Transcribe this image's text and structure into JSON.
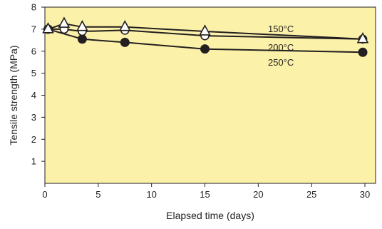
{
  "chart_data": {
    "type": "line",
    "xlabel": "Elapsed time (days)",
    "ylabel": "Tensile strength (MPa)",
    "xlim": [
      0,
      31
    ],
    "ylim": [
      0,
      8
    ],
    "x_ticks": [
      0,
      5,
      10,
      15,
      20,
      25,
      30
    ],
    "y_ticks": [
      1,
      2,
      3,
      4,
      5,
      6,
      7,
      8
    ],
    "grid": false,
    "legend": "inline labels near line ends",
    "colors": {
      "plot_background": "#fbf1a9",
      "line": "#231f20",
      "marker_fill_open": "#ffffff"
    },
    "series": [
      {
        "name": "150°C",
        "marker": "open-triangle",
        "x": [
          0.3,
          1.8,
          3.5,
          7.5,
          15,
          29.8
        ],
        "y": [
          7.0,
          7.25,
          7.1,
          7.1,
          6.9,
          6.55
        ]
      },
      {
        "name": "200°C",
        "marker": "open-circle",
        "x": [
          0.3,
          1.8,
          3.5,
          7.5,
          15,
          29.8
        ],
        "y": [
          7.0,
          7.0,
          6.9,
          6.95,
          6.7,
          6.55
        ]
      },
      {
        "name": "250°C",
        "marker": "filled-circle",
        "x": [
          0.3,
          3.5,
          7.5,
          15,
          29.8
        ],
        "y": [
          7.0,
          6.55,
          6.4,
          6.1,
          5.95
        ]
      }
    ]
  }
}
